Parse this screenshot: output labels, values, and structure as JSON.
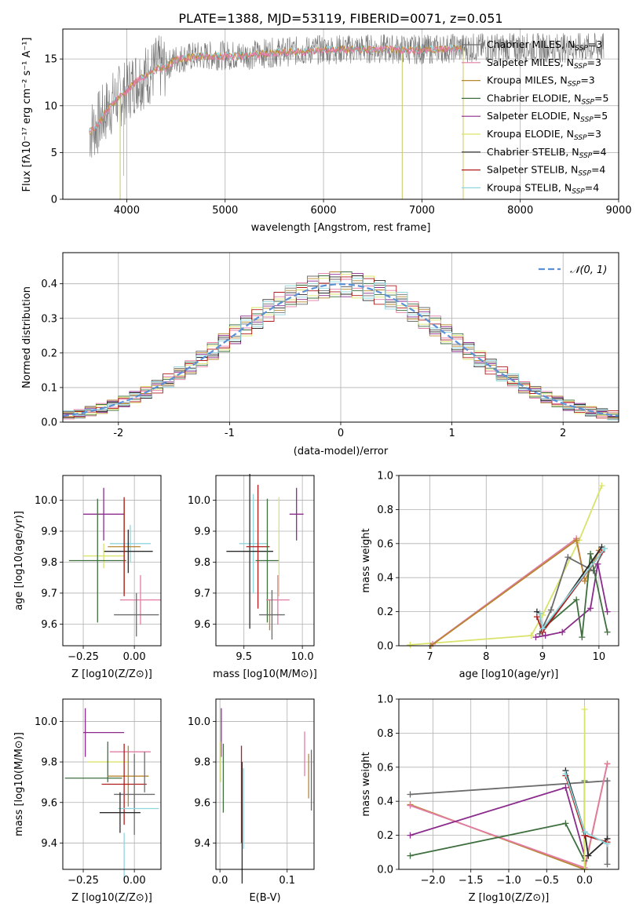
{
  "figure": {
    "title": "PLATE=1388, MJD=53119, FIBERID=0071, z=0.051"
  },
  "colors": {
    "grid": "#b0b0b0",
    "axis": "#000000",
    "models": [
      "#6b6b6b",
      "#e37ba5",
      "#b8862f",
      "#3f6f3f",
      "#8b2b8b",
      "#d9e36b",
      "#2b2b2b",
      "#b01c1c",
      "#8fd6dc"
    ],
    "normal_curve": "#5b8fd6"
  },
  "legend_models": [
    {
      "label": "Chabrier MILES, N",
      "sub": "SSP",
      "tail": "=3"
    },
    {
      "label": "Salpeter MILES, N",
      "sub": "SSP",
      "tail": "=3"
    },
    {
      "label": "Kroupa MILES, N",
      "sub": "SSP",
      "tail": "=3"
    },
    {
      "label": "Chabrier ELODIE, N",
      "sub": "SSP",
      "tail": "=5"
    },
    {
      "label": "Salpeter ELODIE, N",
      "sub": "SSP",
      "tail": "=5"
    },
    {
      "label": "Kroupa ELODIE, N",
      "sub": "SSP",
      "tail": "=3"
    },
    {
      "label": "Chabrier STELIB, N",
      "sub": "SSP",
      "tail": "=4"
    },
    {
      "label": "Salpeter STELIB, N",
      "sub": "SSP",
      "tail": "=4"
    },
    {
      "label": "Kroupa STELIB, N",
      "sub": "SSP",
      "tail": "=4"
    }
  ],
  "chart_data": [
    {
      "id": "spectrum",
      "type": "line",
      "xlabel": "wavelength [Angstrom, rest frame]",
      "ylabel": "Flux [fλ10⁻¹⁷ erg cm⁻² s⁻¹ A⁻¹]",
      "xlim": [
        3350,
        9000
      ],
      "ylim": [
        0,
        18.2
      ],
      "xticks": [
        4000,
        5000,
        6000,
        7000,
        8000,
        9000
      ],
      "yticks": [
        0,
        5,
        10,
        15
      ],
      "legend_position": "right",
      "continuum": {
        "x": [
          3620,
          3700,
          3800,
          3900,
          4000,
          4100,
          4200,
          4300,
          4400,
          4500,
          4700,
          5000,
          5200,
          5500,
          6000,
          6500,
          7000,
          7200,
          7400
        ],
        "y": [
          7.2,
          8.0,
          9.6,
          10.8,
          11.6,
          12.8,
          13.2,
          14.0,
          14.2,
          15.0,
          15.3,
          15.4,
          15.4,
          15.7,
          16.0,
          16.1,
          16.0,
          16.1,
          16.2
        ]
      },
      "model_extent_max_x": 7400,
      "data_extent_max_x": 8850,
      "data_noise_amplitude": 1.6,
      "absorption_lines": [
        {
          "x": 3933,
          "y": 0
        },
        {
          "x": 3968,
          "y": 2.5
        },
        {
          "x": 6800,
          "y": 0
        },
        {
          "x": 7420,
          "y": 0
        }
      ]
    },
    {
      "id": "residual_histogram",
      "type": "histogram",
      "xlabel": "(data-model)/error",
      "ylabel": "Normed distribution",
      "xlim": [
        -2.5,
        2.5
      ],
      "ylim": [
        0,
        0.49
      ],
      "xticks": [
        -2,
        -1,
        0,
        1,
        2
      ],
      "yticks": [
        0.0,
        0.1,
        0.2,
        0.3,
        0.4
      ],
      "bin_width": 0.1,
      "reference": {
        "name": "𝒩(0, 1)",
        "mean": 0,
        "sigma": 1
      },
      "bin_jitter": [
        0.04,
        -0.03,
        0.02,
        -0.05,
        0.03,
        -0.01,
        0.05,
        -0.04,
        0.01,
        -0.02
      ]
    },
    {
      "id": "age_vs_Z",
      "type": "errorbar",
      "xlabel": "Z [log10(Z/Z⊙)]",
      "ylabel": "age  [log10(age/yr)]",
      "xlim": [
        -0.35,
        0.13
      ],
      "ylim": [
        9.53,
        10.08
      ],
      "xticks": [
        -0.25,
        0.0
      ],
      "xticklabels": [
        "−0.25",
        "0.00"
      ],
      "yticks": [
        9.6,
        9.7,
        9.8,
        9.9,
        10.0
      ],
      "points": [
        {
          "x": -0.15,
          "y": 9.955,
          "xerr": 0.1,
          "yerr": 0.085,
          "color": 4
        },
        {
          "x": -0.02,
          "y": 9.86,
          "xerr": 0.1,
          "yerr": 0.06,
          "color": 8
        },
        {
          "x": -0.05,
          "y": 9.85,
          "xerr": 0.08,
          "yerr": 0.15,
          "color": 2
        },
        {
          "x": -0.03,
          "y": 9.835,
          "xerr": 0.12,
          "yerr": 0.07,
          "color": 6
        },
        {
          "x": -0.15,
          "y": 9.82,
          "xerr": 0.1,
          "yerr": 0.04,
          "color": 5
        },
        {
          "x": -0.18,
          "y": 9.805,
          "xerr": 0.14,
          "yerr": 0.2,
          "color": 3
        },
        {
          "x": -0.05,
          "y": 9.85,
          "xerr": 0.0,
          "yerr": 0.16,
          "color": 7
        },
        {
          "x": 0.03,
          "y": 9.678,
          "xerr": 0.1,
          "yerr": 0.08,
          "color": 1
        },
        {
          "x": 0.01,
          "y": 9.63,
          "xerr": 0.11,
          "yerr": 0.07,
          "color": 0
        }
      ]
    },
    {
      "id": "age_vs_mass",
      "type": "errorbar",
      "xlabel": "mass [log10(M/M⊙)]",
      "ylabel": "",
      "xlim": [
        9.26,
        10.1
      ],
      "ylim": [
        9.53,
        10.08
      ],
      "xticks": [
        9.5,
        10.0
      ],
      "xticklabels": [
        "9.5",
        "10.0"
      ],
      "yticks": [
        9.6,
        9.7,
        9.8,
        9.9,
        10.0
      ],
      "points": [
        {
          "x": 9.95,
          "y": 9.955,
          "xerr": 0.06,
          "yerr": 0.085,
          "color": 4
        },
        {
          "x": 9.58,
          "y": 9.86,
          "xerr": 0.12,
          "yerr": 0.16,
          "color": 8
        },
        {
          "x": 9.55,
          "y": 9.835,
          "xerr": 0.2,
          "yerr": 0.25,
          "color": 6
        },
        {
          "x": 9.62,
          "y": 9.85,
          "xerr": 0.1,
          "yerr": 0.2,
          "color": 7
        },
        {
          "x": 9.7,
          "y": 9.805,
          "xerr": 0.1,
          "yerr": 0.2,
          "color": 3
        },
        {
          "x": 9.8,
          "y": 9.85,
          "xerr": 0.0,
          "yerr": 0.16,
          "color": 5
        },
        {
          "x": 9.79,
          "y": 9.678,
          "xerr": 0.1,
          "yerr": 0.08,
          "color": 1
        },
        {
          "x": 9.72,
          "y": 9.63,
          "xerr": 0.0,
          "yerr": 0.05,
          "color": 2
        },
        {
          "x": 9.74,
          "y": 9.63,
          "xerr": 0.11,
          "yerr": 0.08,
          "color": 0
        }
      ]
    },
    {
      "id": "massweight_vs_age",
      "type": "line",
      "xlabel": "age  [log10(age/yr)]",
      "ylabel": "mass weight",
      "xlim": [
        6.45,
        10.35
      ],
      "ylim": [
        0,
        1.0
      ],
      "xticks": [
        7,
        8,
        9,
        10
      ],
      "xticklabels": [
        "7",
        "8",
        "9",
        "10"
      ],
      "yticks": [
        0.0,
        0.2,
        0.4,
        0.6,
        0.8,
        1.0
      ],
      "series": [
        {
          "color": 5,
          "x": [
            6.65,
            8.8,
            9.0,
            9.65,
            10.05
          ],
          "y": [
            0.005,
            0.06,
            0.18,
            0.62,
            0.94
          ]
        },
        {
          "color": 1,
          "x": [
            7.05,
            9.6,
            9.75,
            10.0
          ],
          "y": [
            0.01,
            0.63,
            0.38,
            0.56
          ]
        },
        {
          "color": 2,
          "x": [
            7.02,
            9.6,
            9.75,
            10.0
          ],
          "y": [
            0.0,
            0.62,
            0.38,
            0.56
          ]
        },
        {
          "color": 0,
          "x": [
            8.95,
            9.15,
            9.45,
            9.9,
            10.1
          ],
          "y": [
            0.07,
            0.21,
            0.52,
            0.44,
            0.57
          ]
        },
        {
          "color": 4,
          "x": [
            8.88,
            9.05,
            9.35,
            9.85,
            9.98,
            10.15
          ],
          "y": [
            0.05,
            0.06,
            0.08,
            0.22,
            0.48,
            0.2
          ]
        },
        {
          "color": 3,
          "x": [
            9.0,
            9.6,
            9.7,
            9.85,
            10.15
          ],
          "y": [
            0.1,
            0.27,
            0.05,
            0.54,
            0.08
          ]
        },
        {
          "color": 6,
          "x": [
            8.9,
            8.95,
            9.0,
            10.05
          ],
          "y": [
            0.2,
            0.19,
            0.08,
            0.58
          ]
        },
        {
          "color": 7,
          "x": [
            8.9,
            9.0,
            10.05
          ],
          "y": [
            0.17,
            0.08,
            0.55
          ]
        },
        {
          "color": 8,
          "x": [
            8.95,
            9.0,
            10.1
          ],
          "y": [
            0.19,
            0.1,
            0.57
          ]
        }
      ]
    },
    {
      "id": "mass_vs_Z",
      "type": "errorbar",
      "xlabel": "Z [log10(Z/Z⊙)]",
      "ylabel": "mass [log10(M/M⊙)]",
      "xlim": [
        -0.35,
        0.13
      ],
      "ylim": [
        9.27,
        10.11
      ],
      "xticks": [
        -0.25,
        0.0
      ],
      "xticklabels": [
        "−0.25",
        "0.00"
      ],
      "yticks": [
        9.4,
        9.6,
        9.8,
        10.0
      ],
      "points": [
        {
          "x": -0.24,
          "y": 9.945,
          "xerr": 0.0,
          "yerr": 0.12,
          "color": 4
        },
        {
          "x": -0.15,
          "y": 9.945,
          "xerr": 0.1,
          "yerr": 0.0,
          "color": 4
        },
        {
          "x": -0.02,
          "y": 9.85,
          "xerr": 0.1,
          "yerr": 0.0,
          "color": 1
        },
        {
          "x": -0.13,
          "y": 9.8,
          "xerr": 0.1,
          "yerr": 0.0,
          "color": 5
        },
        {
          "x": -0.13,
          "y": 9.8,
          "xerr": 0.0,
          "yerr": 0.1,
          "color": 3
        },
        {
          "x": -0.03,
          "y": 9.73,
          "xerr": 0.1,
          "yerr": 0.15,
          "color": 2
        },
        {
          "x": -0.2,
          "y": 9.72,
          "xerr": 0.14,
          "yerr": 0.0,
          "color": 3
        },
        {
          "x": -0.05,
          "y": 9.69,
          "xerr": 0.11,
          "yerr": 0.2,
          "color": 7
        },
        {
          "x": 0.0,
          "y": 9.64,
          "xerr": 0.1,
          "yerr": 0.2,
          "color": 0
        },
        {
          "x": 0.02,
          "y": 9.57,
          "xerr": 0.1,
          "yerr": 0.0,
          "color": 8
        },
        {
          "x": -0.07,
          "y": 9.55,
          "xerr": 0.1,
          "yerr": 0.1,
          "color": 6
        },
        {
          "x": -0.05,
          "y": 9.33,
          "xerr": 0.0,
          "yerr": 0.12,
          "color": 8
        },
        {
          "x": 0.05,
          "y": 9.75,
          "xerr": 0.0,
          "yerr": 0.1,
          "color": 0
        }
      ]
    },
    {
      "id": "mass_vs_EBV",
      "type": "errorbar",
      "xlabel": "E(B-V)",
      "ylabel": "",
      "xlim": [
        -0.006,
        0.14
      ],
      "ylim": [
        9.27,
        10.11
      ],
      "xticks": [
        0.0,
        0.1
      ],
      "xticklabels": [
        "0.0",
        "0.1"
      ],
      "yticks": [
        9.4,
        9.6,
        9.8,
        10.0
      ],
      "points": [
        {
          "x": 0.002,
          "y": 9.945,
          "xerr": 0.0,
          "yerr": 0.12,
          "color": 4
        },
        {
          "x": 0.001,
          "y": 9.8,
          "xerr": 0.0,
          "yerr": 0.1,
          "color": 5
        },
        {
          "x": 0.005,
          "y": 9.72,
          "xerr": 0.0,
          "yerr": 0.17,
          "color": 3
        },
        {
          "x": 0.035,
          "y": 9.57,
          "xerr": 0.0,
          "yerr": 0.2,
          "color": 8
        },
        {
          "x": 0.033,
          "y": 9.5,
          "xerr": 0.0,
          "yerr": 0.3,
          "color": 6
        },
        {
          "x": 0.032,
          "y": 9.64,
          "xerr": 0.0,
          "yerr": 0.24,
          "color": 7
        },
        {
          "x": 0.126,
          "y": 9.84,
          "xerr": 0.0,
          "yerr": 0.11,
          "color": 1
        },
        {
          "x": 0.132,
          "y": 9.73,
          "xerr": 0.0,
          "yerr": 0.11,
          "color": 2
        },
        {
          "x": 0.136,
          "y": 9.71,
          "xerr": 0.0,
          "yerr": 0.15,
          "color": 0
        }
      ]
    },
    {
      "id": "massweight_vs_Z",
      "type": "line",
      "xlabel": "Z [log10(Z/Z⊙)]",
      "ylabel": "mass weight",
      "xlim": [
        -2.45,
        0.45
      ],
      "ylim": [
        0,
        1.0
      ],
      "xticks": [
        -2.0,
        -1.5,
        -1.0,
        -0.5,
        0.0
      ],
      "xticklabels": [
        "−2.0",
        "−1.5",
        "−1.0",
        "−0.5",
        "0.0"
      ],
      "yticks": [
        0.0,
        0.2,
        0.4,
        0.6,
        0.8,
        1.0
      ],
      "series": [
        {
          "color": 0,
          "x": [
            -2.3,
            0.3,
            0.3,
            0.3
          ],
          "y": [
            0.44,
            0.52,
            0.52,
            0.03
          ]
        },
        {
          "color": 2,
          "x": [
            -2.3,
            0.0,
            0.3
          ],
          "y": [
            0.38,
            0.0,
            0.62
          ]
        },
        {
          "color": 1,
          "x": [
            -2.3,
            0.0,
            0.3
          ],
          "y": [
            0.375,
            0.01,
            0.62
          ]
        },
        {
          "color": 4,
          "x": [
            -2.3,
            -0.25,
            0.0,
            0.0
          ],
          "y": [
            0.2,
            0.48,
            0.08,
            0.2
          ]
        },
        {
          "color": 3,
          "x": [
            -2.3,
            -0.25,
            0.0,
            0.0
          ],
          "y": [
            0.08,
            0.27,
            0.05,
            0.52
          ]
        },
        {
          "color": 5,
          "x": [
            0.0,
            0.0
          ],
          "y": [
            0.0,
            0.94
          ]
        },
        {
          "color": 6,
          "x": [
            -0.25,
            0.0,
            0.05,
            0.3
          ],
          "y": [
            0.58,
            0.22,
            0.08,
            0.18
          ]
        },
        {
          "color": 7,
          "x": [
            -0.25,
            0.0,
            0.3
          ],
          "y": [
            0.55,
            0.2,
            0.16
          ]
        },
        {
          "color": 8,
          "x": [
            -0.25,
            0.0,
            0.3
          ],
          "y": [
            0.56,
            0.22,
            0.15
          ]
        }
      ]
    }
  ]
}
